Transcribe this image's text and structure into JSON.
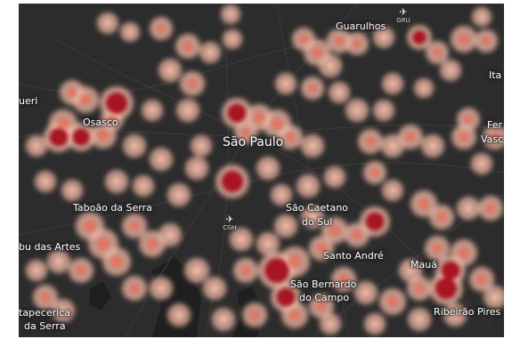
{
  "map": {
    "colors": {
      "land": "#2c2c2c",
      "water": "#1f1f1f",
      "road": "#3a3a3a",
      "heat_low": "#f2b8a6",
      "heat_mid": "#e8705e",
      "heat_high": "#a5121a"
    },
    "labels": [
      {
        "id": "guarulhos",
        "text": "Guarulhos"
      },
      {
        "id": "ita",
        "text": "Ita"
      },
      {
        "id": "barueri",
        "text": "ueri"
      },
      {
        "id": "osasco",
        "text": "Osasco"
      },
      {
        "id": "sao-paulo",
        "text": "São Paulo"
      },
      {
        "id": "fer",
        "text": "Fer"
      },
      {
        "id": "vasc",
        "text": "Vasc"
      },
      {
        "id": "taboao",
        "text": "Taboão da Serra"
      },
      {
        "id": "sao-caetano-1",
        "text": "São Caetano"
      },
      {
        "id": "sao-caetano-2",
        "text": "do Sul"
      },
      {
        "id": "embu",
        "text": "bu das Artes"
      },
      {
        "id": "santo-andre",
        "text": "Santo André"
      },
      {
        "id": "maua",
        "text": "Mauá"
      },
      {
        "id": "sbc-1",
        "text": "São Bernardo"
      },
      {
        "id": "sbc-2",
        "text": "do Campo"
      },
      {
        "id": "itapecerica-1",
        "text": "tapecerica"
      },
      {
        "id": "itapecerica-2",
        "text": "da Serra"
      },
      {
        "id": "ribeirao",
        "text": "Ribeirão Pires"
      }
    ],
    "airports": [
      {
        "id": "gru",
        "icon": "airplane-icon",
        "code": "GRU"
      },
      {
        "id": "cgh",
        "icon": "airplane-icon",
        "code": "CGH"
      }
    ]
  }
}
